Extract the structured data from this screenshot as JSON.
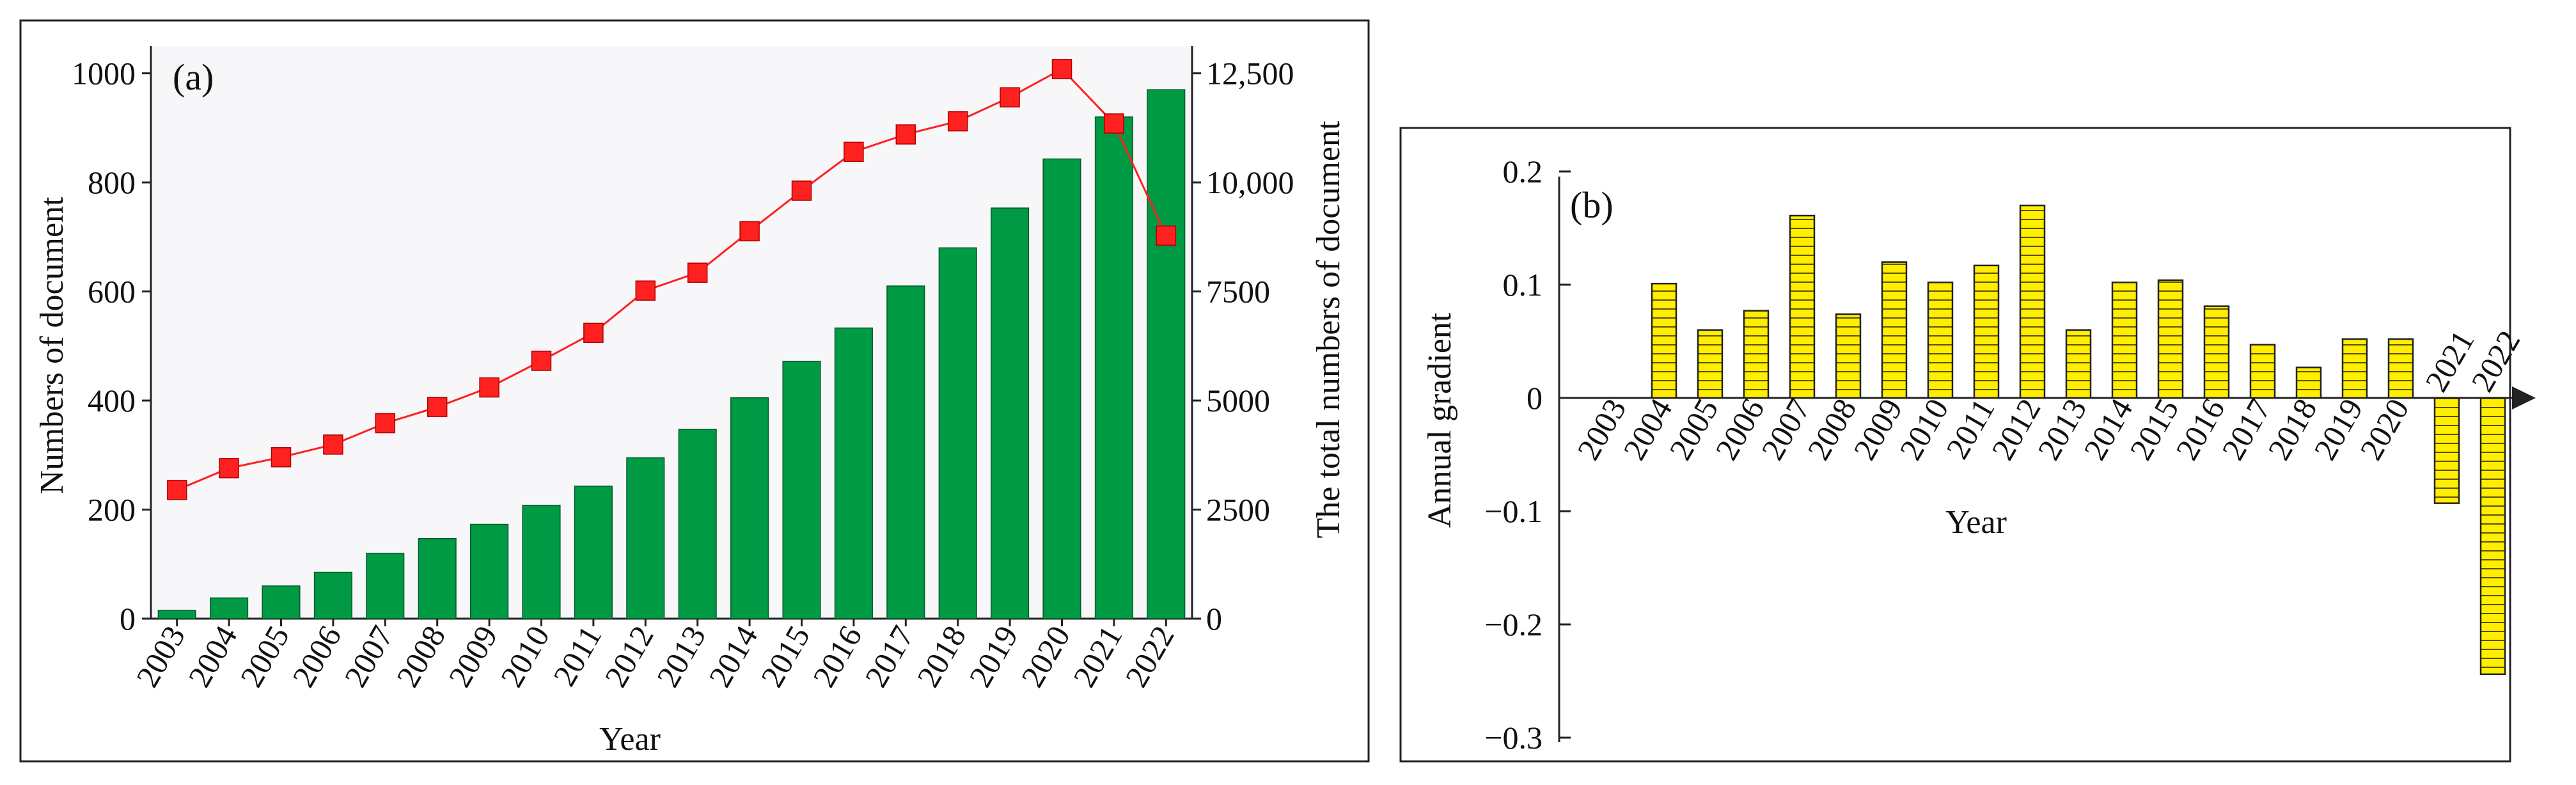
{
  "chart_data": [
    {
      "panel": "(a)",
      "type": "bar",
      "categories": [
        "2003",
        "2004",
        "2005",
        "2006",
        "2007",
        "2008",
        "2009",
        "2010",
        "2011",
        "2012",
        "2013",
        "2014",
        "2015",
        "2016",
        "2017",
        "2018",
        "2019",
        "2020",
        "2021",
        "2022"
      ],
      "series": [
        {
          "name": "Numbers of document",
          "type": "bar",
          "axis": "left",
          "color": "#009a44",
          "values": [
            15,
            38,
            60,
            85,
            120,
            147,
            173,
            208,
            243,
            295,
            347,
            405,
            472,
            533,
            610,
            680,
            753,
            843,
            920,
            970
          ]
        },
        {
          "name": "The total numbers of document",
          "type": "line",
          "axis": "right",
          "color": "#ff2020",
          "values": [
            2950,
            3450,
            3700,
            3990,
            4480,
            4850,
            5300,
            5910,
            6550,
            7520,
            7930,
            8880,
            9810,
            10700,
            11100,
            11400,
            11950,
            12600,
            11350,
            8780
          ]
        }
      ],
      "xlabel": "Year",
      "ylabel": "Numbers of document",
      "ylabel_right": "The total numbers of document",
      "ylim": [
        0,
        1050
      ],
      "ylim_right": [
        0,
        13125
      ],
      "yticks": [
        "0",
        "200",
        "400",
        "600",
        "800",
        "1000"
      ],
      "yticks_values": [
        0,
        200,
        400,
        600,
        800,
        1000
      ],
      "yticks_right": [
        "0",
        "2500",
        "5000",
        "7500",
        "10,000",
        "12,500"
      ],
      "yticks_right_values": [
        0,
        2500,
        5000,
        7500,
        10000,
        12500
      ]
    },
    {
      "panel": "(b)",
      "type": "bar",
      "categories": [
        "2003",
        "2004",
        "2005",
        "2006",
        "2007",
        "2008",
        "2009",
        "2010",
        "2011",
        "2012",
        "2013",
        "2014",
        "2015",
        "2016",
        "2017",
        "2018",
        "2019",
        "2020",
        "2021",
        "2022"
      ],
      "series": [
        {
          "name": "Annual gradient",
          "type": "bar",
          "color": "#ffee00",
          "values": [
            null,
            0.101,
            0.06,
            0.077,
            0.161,
            0.074,
            0.12,
            0.102,
            0.117,
            0.17,
            0.06,
            0.102,
            0.104,
            0.081,
            0.047,
            0.027,
            0.052,
            0.052,
            -0.093,
            -0.244
          ]
        }
      ],
      "xlabel": "Year",
      "ylabel": "Annual gradient",
      "ylim": [
        -0.3,
        0.2
      ],
      "yticks": [
        "0.2",
        "0.1",
        "0",
        "−0.1",
        "−0.2",
        "−0.3"
      ],
      "yticks_values": [
        0.2,
        0.1,
        0,
        -0.1,
        -0.2,
        -0.3
      ]
    }
  ]
}
